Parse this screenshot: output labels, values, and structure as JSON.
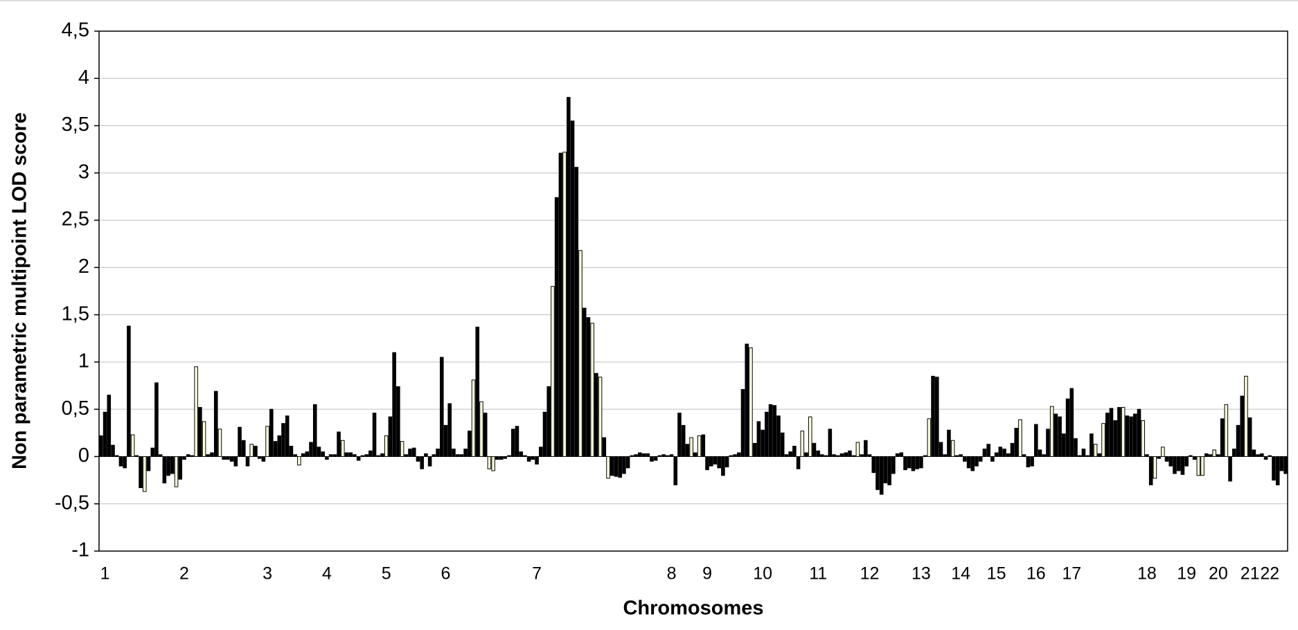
{
  "chart_data": {
    "type": "bar",
    "ylabel": "Non parametric multipoint LOD score",
    "xlabel": "Chromosomes",
    "ylim": [
      -1,
      4.5
    ],
    "yticks": [
      -1,
      {
        "value": -0.5,
        "label": "-0,5"
      },
      0,
      {
        "value": 0.5,
        "label": "0,5"
      },
      1,
      {
        "value": 1.5,
        "label": "1,5"
      },
      2,
      {
        "value": 2.5,
        "label": "2,5"
      },
      3,
      {
        "value": 3.5,
        "label": "3,5"
      },
      4,
      {
        "value": 4.5,
        "label": "4,5"
      }
    ],
    "grid": true,
    "categories": [
      null,
      "1",
      null,
      null,
      null,
      null,
      null,
      null,
      null,
      null,
      null,
      null,
      null,
      null,
      null,
      null,
      null,
      null,
      null,
      null,
      null,
      "2",
      null,
      null,
      null,
      null,
      null,
      null,
      null,
      null,
      null,
      null,
      null,
      null,
      null,
      null,
      null,
      null,
      null,
      null,
      null,
      null,
      "3",
      null,
      null,
      null,
      null,
      null,
      null,
      null,
      null,
      null,
      null,
      null,
      null,
      null,
      null,
      "4",
      null,
      null,
      null,
      null,
      null,
      null,
      null,
      null,
      null,
      null,
      null,
      null,
      null,
      null,
      "5",
      null,
      null,
      null,
      null,
      null,
      null,
      null,
      null,
      null,
      null,
      null,
      null,
      null,
      null,
      "6",
      null,
      null,
      null,
      null,
      null,
      null,
      null,
      null,
      null,
      null,
      null,
      null,
      null,
      null,
      null,
      null,
      null,
      null,
      null,
      null,
      null,
      null,
      "7",
      null,
      null,
      null,
      null,
      null,
      null,
      null,
      null,
      null,
      null,
      null,
      null,
      null,
      null,
      null,
      null,
      null,
      null,
      null,
      null,
      null,
      null,
      null,
      null,
      null,
      null,
      null,
      null,
      null,
      null,
      null,
      null,
      null,
      "8",
      null,
      null,
      null,
      null,
      null,
      null,
      null,
      null,
      "9",
      null,
      null,
      null,
      null,
      null,
      null,
      null,
      null,
      null,
      null,
      null,
      null,
      null,
      "10",
      null,
      null,
      null,
      null,
      null,
      null,
      null,
      null,
      null,
      null,
      null,
      null,
      null,
      "11",
      null,
      null,
      null,
      null,
      null,
      null,
      null,
      null,
      null,
      null,
      null,
      null,
      "12",
      null,
      null,
      null,
      null,
      null,
      null,
      null,
      null,
      null,
      null,
      null,
      null,
      "13",
      null,
      null,
      null,
      null,
      null,
      null,
      null,
      null,
      null,
      "14",
      null,
      null,
      null,
      null,
      null,
      null,
      null,
      null,
      "15",
      null,
      null,
      null,
      null,
      null,
      null,
      null,
      null,
      null,
      "16",
      null,
      null,
      null,
      null,
      null,
      null,
      null,
      null,
      "17",
      null,
      null,
      null,
      null,
      null,
      null,
      null,
      null,
      null,
      null,
      null,
      null,
      null,
      null,
      null,
      null,
      null,
      null,
      "18",
      null,
      null,
      null,
      null,
      null,
      null,
      null,
      null,
      null,
      "19",
      null,
      null,
      null,
      null,
      null,
      null,
      null,
      "20",
      null,
      null,
      null,
      null,
      null,
      null,
      null,
      "21",
      null,
      null,
      null,
      null,
      "22",
      null,
      null,
      null,
      null
    ],
    "values": [
      0.22,
      0.47,
      0.65,
      0.12,
      0.01,
      -0.1,
      -0.12,
      1.38,
      0.23,
      0.01,
      -0.33,
      -0.37,
      -0.15,
      0.09,
      0.78,
      0.02,
      -0.28,
      -0.2,
      -0.18,
      -0.32,
      -0.24,
      -0.03,
      0.02,
      0.01,
      0.95,
      0.52,
      0.37,
      0.02,
      0.04,
      0.69,
      0.29,
      -0.03,
      -0.03,
      -0.05,
      -0.1,
      0.31,
      0.17,
      -0.1,
      0.13,
      0.11,
      -0.02,
      -0.05,
      0.32,
      0.5,
      0.16,
      0.22,
      0.35,
      0.43,
      0.11,
      0.02,
      -0.09,
      0.03,
      0.05,
      0.15,
      0.55,
      0.1,
      0.05,
      -0.03,
      0.02,
      0.02,
      0.26,
      0.17,
      0.04,
      0.04,
      0.02,
      -0.04,
      0.01,
      0.02,
      0.06,
      0.46,
      0.01,
      0.03,
      0.22,
      0.42,
      1.1,
      0.74,
      0.16,
      0.02,
      0.08,
      0.09,
      -0.05,
      -0.13,
      0.03,
      -0.1,
      0.02,
      0.08,
      1.05,
      0.33,
      0.56,
      0.08,
      0.02,
      0.02,
      0.08,
      0.27,
      0.81,
      1.37,
      0.58,
      0.46,
      -0.13,
      -0.15,
      -0.03,
      -0.03,
      -0.02,
      0.01,
      0.29,
      0.32,
      0.05,
      0.01,
      -0.05,
      -0.03,
      -0.08,
      0.1,
      0.47,
      0.74,
      1.8,
      2.74,
      3.21,
      3.22,
      3.8,
      3.55,
      3.06,
      2.18,
      1.57,
      1.47,
      1.41,
      0.88,
      0.84,
      0.2,
      -0.23,
      -0.2,
      -0.21,
      -0.22,
      -0.18,
      -0.12,
      0.01,
      0.02,
      0.04,
      0.03,
      0.03,
      -0.05,
      -0.04,
      0.01,
      0.02,
      0.01,
      0.02,
      -0.3,
      0.46,
      0.33,
      0.13,
      0.2,
      0.04,
      0.22,
      0.23,
      -0.14,
      -0.1,
      -0.08,
      -0.12,
      -0.2,
      -0.11,
      0.01,
      0.02,
      0.04,
      0.71,
      1.19,
      1.15,
      0.14,
      0.37,
      0.28,
      0.47,
      0.55,
      0.54,
      0.43,
      0.25,
      0.02,
      0.05,
      0.11,
      -0.13,
      0.27,
      0.04,
      0.42,
      0.14,
      0.06,
      0.02,
      0.01,
      0.29,
      0.02,
      0.01,
      0.03,
      0.04,
      0.06,
      0.01,
      0.15,
      0.02,
      0.17,
      0.02,
      -0.17,
      -0.35,
      -0.4,
      -0.28,
      -0.3,
      -0.18,
      0.03,
      0.04,
      -0.14,
      -0.12,
      -0.15,
      -0.13,
      -0.12,
      0.01,
      0.4,
      0.85,
      0.84,
      0.15,
      0.02,
      0.28,
      0.17,
      0.01,
      0.02,
      -0.05,
      -0.12,
      -0.15,
      -0.1,
      -0.05,
      0.08,
      0.13,
      -0.05,
      0.04,
      0.1,
      0.08,
      0.03,
      0.14,
      0.3,
      0.39,
      0.02,
      -0.11,
      -0.1,
      0.34,
      0.07,
      0.02,
      0.29,
      0.53,
      0.45,
      0.42,
      0.24,
      0.61,
      0.72,
      0.19,
      0.01,
      0.08,
      0.01,
      0.24,
      0.13,
      0.03,
      0.35,
      0.46,
      0.51,
      0.38,
      0.52,
      0.52,
      0.43,
      0.42,
      0.45,
      0.5,
      0.38,
      0.02,
      -0.3,
      -0.23,
      -0.02,
      0.1,
      -0.05,
      -0.1,
      -0.18,
      -0.15,
      -0.19,
      -0.1,
      0.01,
      -0.03,
      -0.2,
      -0.2,
      0.03,
      0.02,
      0.07,
      0.02,
      0.4,
      0.55,
      -0.26,
      0.08,
      0.33,
      0.64,
      0.85,
      0.41,
      0.07,
      0.02,
      0.03,
      -0.03,
      0.01,
      -0.25,
      -0.3,
      -0.15,
      -0.18
    ],
    "bar_colors": [
      "#000",
      "#000",
      "#000",
      "#000",
      "#000",
      "#000",
      "#000",
      "#000",
      "#ffd",
      "#000",
      "#000",
      "#ffd",
      "#000",
      "#000",
      "#000",
      "#000",
      "#000",
      "#000",
      "#000",
      "#ffd",
      "#000",
      "#000",
      "#000",
      "#000",
      "#ffd",
      "#000",
      "#ffd",
      "#000",
      "#000",
      "#000",
      "#ffd",
      "#000",
      "#000",
      "#000",
      "#000",
      "#000",
      "#000",
      "#000",
      "#ffd",
      "#000",
      "#000",
      "#000",
      "#ffd",
      "#000",
      "#000",
      "#000",
      "#000",
      "#000",
      "#000",
      "#000",
      "#ffd",
      "#000",
      "#000",
      "#000",
      "#000",
      "#000",
      "#000",
      "#000",
      "#000",
      "#000",
      "#000",
      "#ffd",
      "#000",
      "#000",
      "#000",
      "#000",
      "#000",
      "#000",
      "#000",
      "#000",
      "#000",
      "#000",
      "#ffd",
      "#000",
      "#000",
      "#000",
      "#ffd",
      "#000",
      "#000",
      "#000",
      "#000",
      "#000",
      "#000",
      "#000",
      "#000",
      "#000",
      "#000",
      "#000",
      "#000",
      "#000",
      "#000",
      "#000",
      "#000",
      "#000",
      "#ffd",
      "#000",
      "#ffd",
      "#000",
      "#ffd",
      "#ffd",
      "#000",
      "#000",
      "#000",
      "#000",
      "#000",
      "#000",
      "#000",
      "#000",
      "#000",
      "#000",
      "#000",
      "#000",
      "#000",
      "#000",
      "#ffd",
      "#000",
      "#000",
      "#ffd",
      "#000",
      "#000",
      "#000",
      "#ffd",
      "#000",
      "#000",
      "#ffd",
      "#000",
      "#ffd",
      "#000",
      "#ffd",
      "#000",
      "#000",
      "#000",
      "#000",
      "#000",
      "#000",
      "#000",
      "#000",
      "#000",
      "#000",
      "#000",
      "#000",
      "#000",
      "#000",
      "#000",
      "#000",
      "#000",
      "#000",
      "#000",
      "#000",
      "#ffd",
      "#000",
      "#ffd",
      "#000",
      "#000",
      "#000",
      "#000",
      "#000",
      "#000",
      "#000",
      "#000",
      "#000",
      "#000",
      "#000",
      "#000",
      "#ffd",
      "#000",
      "#000",
      "#000",
      "#000",
      "#000",
      "#000",
      "#000",
      "#000",
      "#000",
      "#000",
      "#000",
      "#000",
      "#ffd",
      "#000",
      "#ffd",
      "#000",
      "#000",
      "#000",
      "#000",
      "#000",
      "#000",
      "#000",
      "#000",
      "#000",
      "#000",
      "#000",
      "#ffd",
      "#000",
      "#000",
      "#000",
      "#000",
      "#000",
      "#000",
      "#000",
      "#000",
      "#000",
      "#000",
      "#000",
      "#000",
      "#000",
      "#000",
      "#000",
      "#000",
      "#000",
      "#ffd",
      "#000",
      "#000",
      "#000",
      "#000",
      "#000",
      "#ffd",
      "#000",
      "#000",
      "#000",
      "#000",
      "#000",
      "#000",
      "#000",
      "#000",
      "#000",
      "#000",
      "#000",
      "#000",
      "#000",
      "#000",
      "#000",
      "#000",
      "#ffd",
      "#000",
      "#000",
      "#000",
      "#000",
      "#000",
      "#000",
      "#000",
      "#ffd",
      "#000",
      "#000",
      "#000",
      "#000",
      "#000",
      "#000",
      "#000",
      "#000",
      "#000",
      "#000",
      "#ffd",
      "#000",
      "#ffd",
      "#000",
      "#000",
      "#000",
      "#000",
      "#ffd",
      "#000",
      "#000",
      "#000",
      "#000",
      "#ffd",
      "#000",
      "#000",
      "#ffd",
      "#000",
      "#ffd",
      "#000",
      "#000",
      "#000",
      "#000",
      "#000",
      "#000",
      "#000",
      "#000",
      "#ffd",
      "#ffd",
      "#000",
      "#000",
      "#ffd",
      "#000",
      "#000",
      "#ffd",
      "#000",
      "#000",
      "#000",
      "#000",
      "#ffd",
      "#000",
      "#000",
      "#000",
      "#000",
      "#000",
      "#000",
      "#000",
      "#000",
      "#000",
      "#000"
    ]
  }
}
